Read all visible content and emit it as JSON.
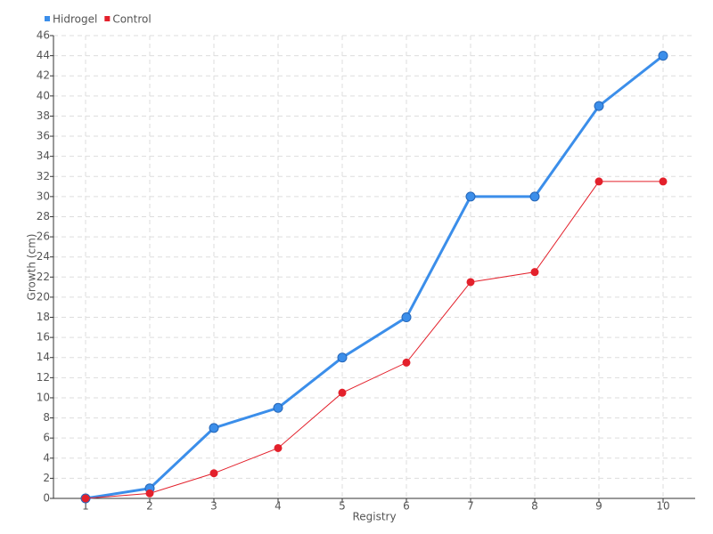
{
  "chart_data": {
    "type": "line",
    "x_label": "Registry",
    "y_label": "Growth (cm)",
    "categories": [
      "1",
      "2",
      "3",
      "4",
      "5",
      "6",
      "7",
      "8",
      "9",
      "10"
    ],
    "series": [
      {
        "name": "Hidrogel",
        "color": "#3b8eea",
        "values": [
          0,
          1,
          7,
          9,
          14,
          18,
          30,
          30,
          39,
          44
        ]
      },
      {
        "name": "Control",
        "color": "#e3202b",
        "values": [
          0,
          0.5,
          2.5,
          5,
          10.5,
          13.5,
          21.5,
          22.5,
          31.5,
          31.5
        ]
      }
    ],
    "ylim": [
      0,
      46
    ],
    "yticks": [
      0,
      2,
      4,
      6,
      8,
      10,
      12,
      14,
      16,
      18,
      20,
      22,
      24,
      26,
      28,
      30,
      32,
      34,
      36,
      38,
      40,
      42,
      44,
      46
    ],
    "grid": true,
    "legend": "top-left"
  }
}
